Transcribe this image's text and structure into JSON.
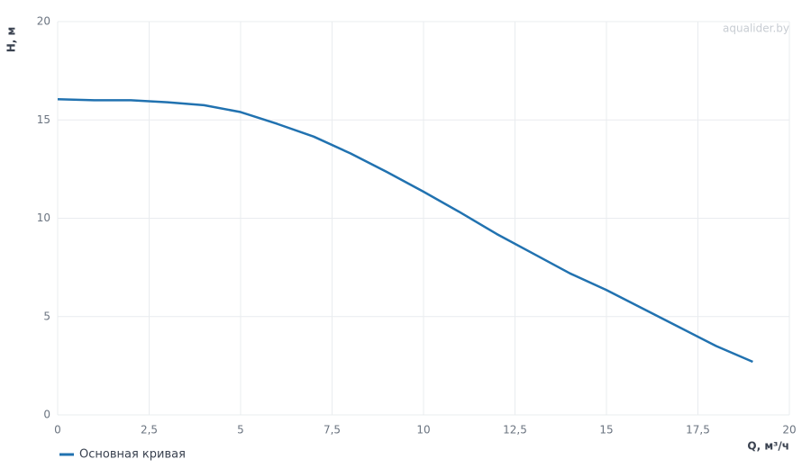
{
  "chart_data": {
    "type": "line",
    "x_label": "Q, м³/ч",
    "y_label": "H, м",
    "watermark": "aqualider.by",
    "x": [
      0,
      1,
      2,
      3,
      4,
      5,
      6,
      7,
      8,
      9,
      10,
      11,
      12,
      13,
      14,
      15,
      16,
      17,
      18,
      19
    ],
    "series": [
      {
        "name": "Основная кривая",
        "color": "#2172b0",
        "values": [
          16.05,
          16.0,
          16.0,
          15.9,
          15.75,
          15.4,
          14.8,
          14.15,
          13.3,
          12.35,
          11.35,
          10.3,
          9.2,
          8.2,
          7.2,
          6.35,
          5.4,
          4.45,
          3.5,
          2.7
        ]
      }
    ],
    "xlim": [
      0,
      20
    ],
    "xticks": [
      0,
      {
        "value": 2.5,
        "label": "2,5"
      },
      5,
      {
        "value": 7.5,
        "label": "7,5"
      },
      10,
      {
        "value": 12.5,
        "label": "12,5"
      },
      15,
      {
        "value": 17.5,
        "label": "17,5"
      },
      20
    ],
    "ylim": [
      0,
      20
    ],
    "yticks": [
      0,
      5,
      10,
      15,
      20
    ],
    "grid": true,
    "legend": "bottom-left"
  }
}
